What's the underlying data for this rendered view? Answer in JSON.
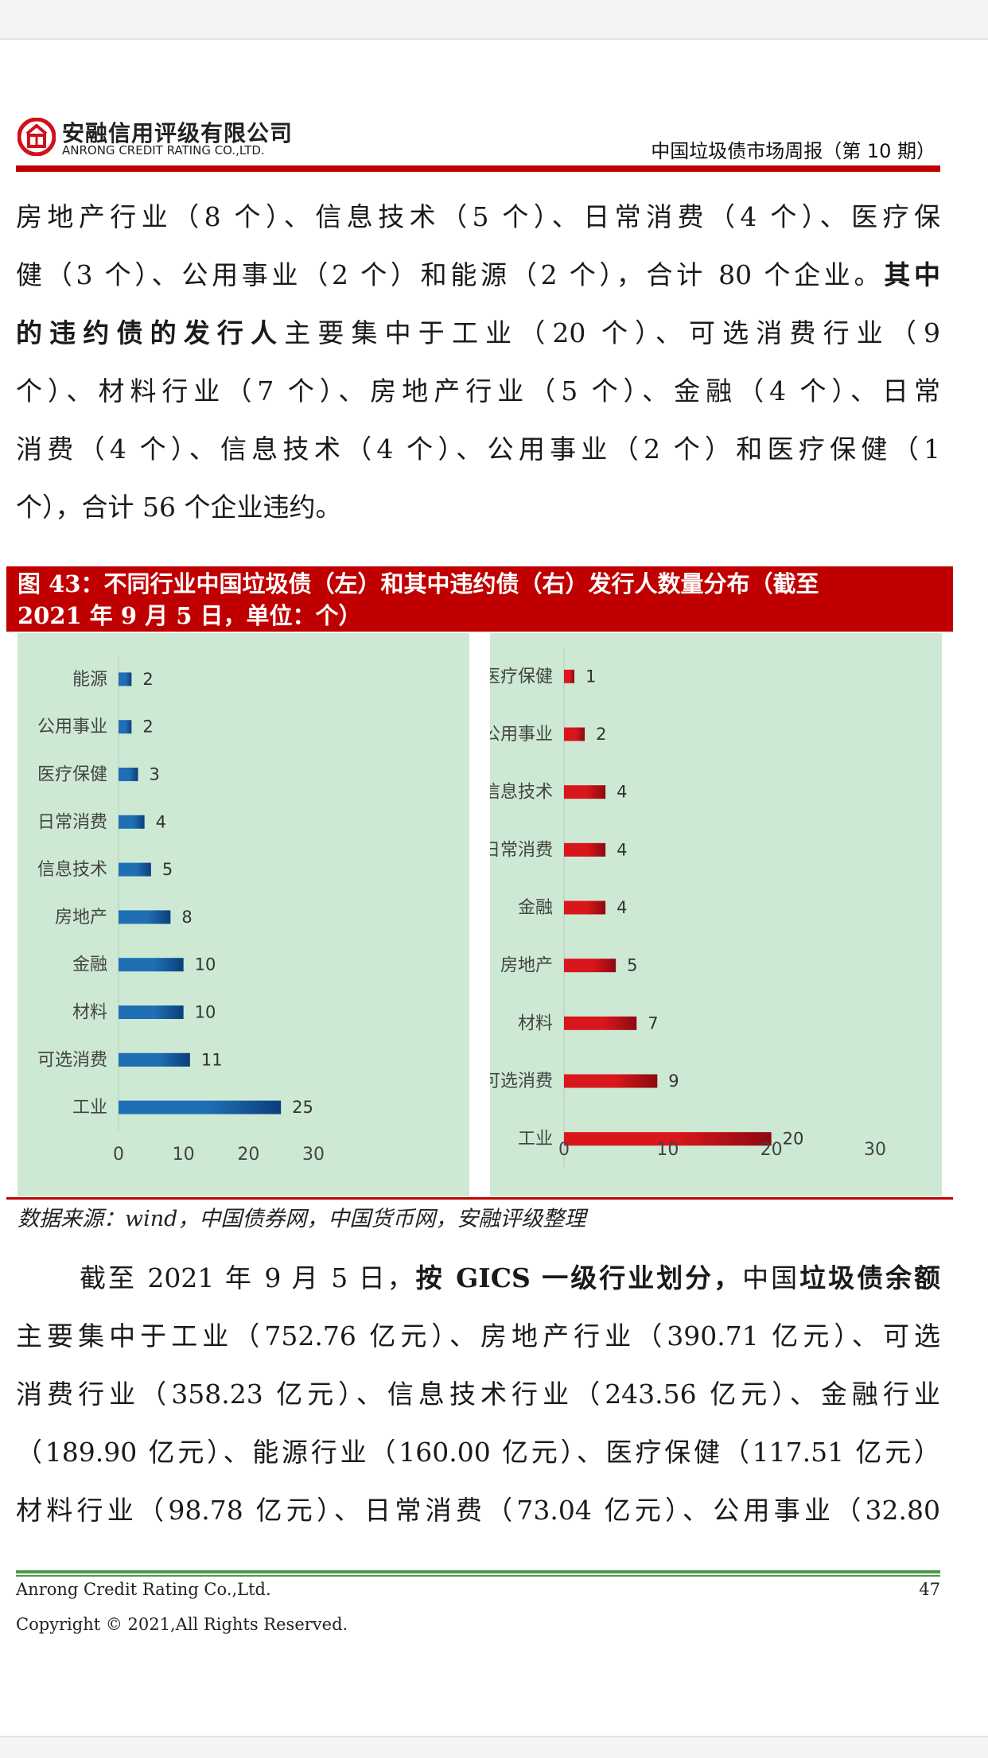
{
  "header": {
    "company_cn": "安融信用评级有限公司",
    "company_en": "ANRONG CREDIT RATING CO.,LTD.",
    "report_title": "中国垃圾债市场周报（第 10 期）"
  },
  "para1": {
    "l1": "房地产行业（8 个）、信息技术（5 个）、日常消费（4 个）、医疗保",
    "l2a": "健（3 个）、公用事业（2 个）和能源（2 个），合计 80 个企业。",
    "l2b": "其中",
    "l3a": "的违约债的发行人",
    "l3b": "主要集中于工业（20 个）、可选消费行业（9",
    "l4": "个）、材料行业（7 个）、房地产行业（5 个）、金融（4 个）、日常",
    "l5": "消费（4 个）、信息技术（4 个）、公用事业（2 个）和医疗保健（1",
    "l6": "个），合计 56 个企业违约。"
  },
  "figure": {
    "title_line1": "图 43：不同行业中国垃圾债（左）和其中违约债（右）发行人数量分布（截至",
    "title_line2": "2021 年 9 月 5 日，单位：个）",
    "source": "数据来源：wind，中国债券网，中国货币网，安融评级整理"
  },
  "chart_data": [
    {
      "type": "bar",
      "orientation": "horizontal",
      "categories": [
        "能源",
        "公用事业",
        "医疗保健",
        "日常消费",
        "信息技术",
        "房地产",
        "金融",
        "材料",
        "可选消费",
        "工业"
      ],
      "values": [
        2,
        2,
        3,
        4,
        5,
        8,
        10,
        10,
        11,
        25
      ],
      "xlim": [
        0,
        30
      ],
      "xticks": [
        "0",
        "10",
        "20",
        "30"
      ],
      "color": "#1f6fb5",
      "grid": false
    },
    {
      "type": "bar",
      "orientation": "horizontal",
      "categories": [
        "医疗保健",
        "公用事业",
        "信息技术",
        "日常消费",
        "金融",
        "房地产",
        "材料",
        "可选消费",
        "工业"
      ],
      "values": [
        1,
        2,
        4,
        4,
        4,
        5,
        7,
        9,
        20
      ],
      "xlim": [
        0,
        30
      ],
      "xticks": [
        "0",
        "10",
        "20",
        "30"
      ],
      "color": "#d9161c",
      "grid": false
    }
  ],
  "para2": {
    "l1a": "截至 2021 年 9 月 5 日，",
    "l1b": "按 GICS 一级行业划分，",
    "l1c": "中国",
    "l1d": "垃圾债余额",
    "l2": "主要集中于工业（752.76 亿元）、房地产行业（390.71 亿元）、可选",
    "l3": "消费行业（358.23 亿元）、信息技术行业（243.56 亿元）、金融行业",
    "l4": "（189.90 亿元）、能源行业（160.00 亿元）、医疗保健（117.51 亿元）",
    "l5": "材料行业（98.78 亿元）、日常消费（73.04 亿元）、公用事业（32.80"
  },
  "footer": {
    "company": "Anrong Credit Rating Co.,Ltd.",
    "page": "47",
    "copyright": "Copyright © 2021,All Rights Reserved."
  }
}
